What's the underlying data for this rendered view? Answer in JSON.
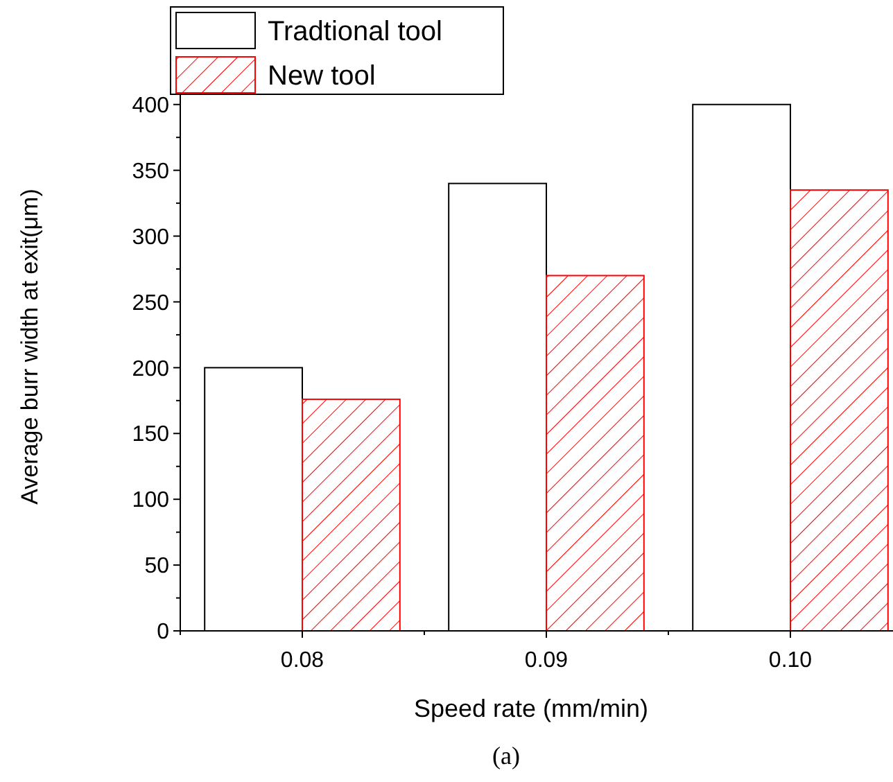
{
  "chart_data": {
    "type": "bar",
    "xlabel": "Speed rate (mm/min)",
    "ylabel": "Average burr width at exit(μm)",
    "categories": [
      "0.08",
      "0.09",
      "0.10"
    ],
    "series": [
      {
        "name": "Tradtional tool",
        "color": "#000000",
        "values": [
          200,
          340,
          400
        ]
      },
      {
        "name": "New tool",
        "color": "#ff0000",
        "values": [
          176,
          270,
          335
        ]
      }
    ],
    "ylim": [
      0,
      432
    ],
    "yticks": [
      0,
      {
        "value": 25,
        "label": null
      },
      50,
      {
        "value": 75,
        "label": null
      },
      100,
      {
        "value": 125,
        "label": null
      },
      150,
      {
        "value": 175,
        "label": null
      },
      200,
      {
        "value": 225,
        "label": null
      },
      250,
      {
        "value": 275,
        "label": null
      },
      300,
      {
        "value": 325,
        "label": null
      },
      350,
      {
        "value": 375,
        "label": null
      },
      400,
      {
        "value": 425,
        "label": null
      }
    ],
    "legend": "top left",
    "grid": false,
    "annotations": [
      "(a)"
    ]
  }
}
